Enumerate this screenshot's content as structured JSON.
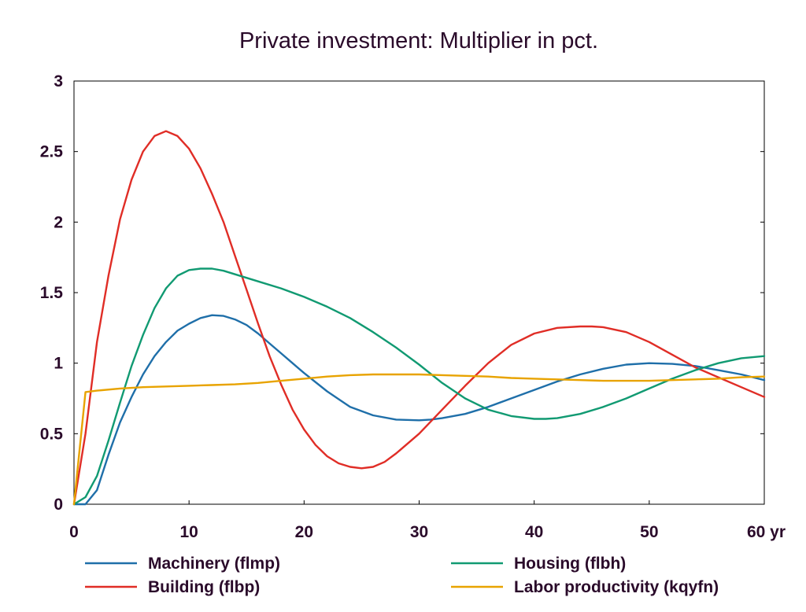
{
  "chart_data": {
    "type": "line",
    "title": "Private investment: Multiplier in pct.",
    "xlabel": "",
    "ylabel": "",
    "x_unit_label": "yr",
    "xlim": [
      0,
      60
    ],
    "ylim": [
      0,
      3
    ],
    "xticks": [
      0,
      10,
      20,
      30,
      40,
      50,
      60
    ],
    "xtick_labels": [
      "0",
      "10",
      "20",
      "30",
      "40",
      "50",
      "60 yr"
    ],
    "yticks": [
      0,
      0.5,
      1,
      1.5,
      2,
      2.5,
      3
    ],
    "ytick_labels": [
      "0",
      "0.5",
      "1",
      "1.5",
      "2",
      "2.5",
      "3"
    ],
    "grid": false,
    "legend_position": "bottom",
    "series": [
      {
        "name": "Machinery (flmp)",
        "color": "#1f6fa9",
        "x": [
          0,
          1,
          2,
          3,
          4,
          5,
          6,
          7,
          8,
          9,
          10,
          11,
          12,
          13,
          14,
          15,
          16,
          17,
          18,
          19,
          20,
          22,
          24,
          26,
          28,
          30,
          31,
          32,
          34,
          36,
          38,
          40,
          42,
          44,
          46,
          48,
          50,
          52,
          54,
          56,
          58,
          60
        ],
        "y": [
          0,
          0,
          0.1,
          0.35,
          0.58,
          0.76,
          0.92,
          1.05,
          1.15,
          1.23,
          1.28,
          1.32,
          1.34,
          1.335,
          1.31,
          1.27,
          1.21,
          1.14,
          1.07,
          1.0,
          0.93,
          0.8,
          0.69,
          0.63,
          0.6,
          0.595,
          0.6,
          0.61,
          0.64,
          0.69,
          0.75,
          0.81,
          0.87,
          0.92,
          0.96,
          0.99,
          1.0,
          0.995,
          0.98,
          0.95,
          0.92,
          0.88
        ]
      },
      {
        "name": "Building (flbp)",
        "color": "#e02d26",
        "x": [
          0,
          1,
          2,
          3,
          4,
          5,
          6,
          7,
          8,
          9,
          10,
          11,
          12,
          13,
          14,
          15,
          16,
          17,
          18,
          19,
          20,
          21,
          22,
          23,
          24,
          25,
          26,
          27,
          28,
          30,
          32,
          34,
          36,
          38,
          40,
          42,
          44,
          45,
          46,
          48,
          50,
          52,
          54,
          56,
          58,
          60
        ],
        "y": [
          0,
          0.5,
          1.15,
          1.62,
          2.02,
          2.3,
          2.5,
          2.61,
          2.645,
          2.61,
          2.52,
          2.38,
          2.2,
          2.0,
          1.76,
          1.52,
          1.28,
          1.05,
          0.85,
          0.67,
          0.53,
          0.42,
          0.34,
          0.29,
          0.265,
          0.255,
          0.265,
          0.3,
          0.36,
          0.5,
          0.67,
          0.84,
          1.0,
          1.13,
          1.21,
          1.25,
          1.26,
          1.26,
          1.255,
          1.22,
          1.15,
          1.06,
          0.97,
          0.9,
          0.83,
          0.76
        ]
      },
      {
        "name": "Housing (flbh)",
        "color": "#119a72",
        "x": [
          0,
          1,
          2,
          3,
          4,
          5,
          6,
          7,
          8,
          9,
          10,
          11,
          12,
          13,
          14,
          16,
          18,
          20,
          22,
          24,
          26,
          28,
          30,
          32,
          34,
          36,
          38,
          40,
          41,
          42,
          44,
          46,
          48,
          50,
          52,
          54,
          56,
          58,
          60
        ],
        "y": [
          0,
          0.05,
          0.2,
          0.45,
          0.72,
          0.98,
          1.2,
          1.39,
          1.53,
          1.62,
          1.66,
          1.67,
          1.67,
          1.655,
          1.63,
          1.58,
          1.53,
          1.47,
          1.4,
          1.32,
          1.22,
          1.11,
          0.99,
          0.86,
          0.75,
          0.67,
          0.625,
          0.605,
          0.605,
          0.61,
          0.64,
          0.69,
          0.75,
          0.82,
          0.89,
          0.95,
          1.0,
          1.035,
          1.05
        ]
      },
      {
        "name": "Labor productivity (kqyfn)",
        "color": "#e8a300",
        "x": [
          0,
          1,
          2,
          4,
          6,
          8,
          10,
          12,
          14,
          16,
          18,
          20,
          22,
          24,
          26,
          28,
          30,
          32,
          34,
          36,
          38,
          40,
          42,
          44,
          46,
          48,
          50,
          52,
          54,
          56,
          58,
          60
        ],
        "y": [
          0,
          0.795,
          0.805,
          0.82,
          0.83,
          0.835,
          0.84,
          0.845,
          0.85,
          0.86,
          0.875,
          0.89,
          0.905,
          0.915,
          0.92,
          0.92,
          0.92,
          0.915,
          0.91,
          0.905,
          0.895,
          0.89,
          0.885,
          0.88,
          0.875,
          0.875,
          0.875,
          0.88,
          0.885,
          0.89,
          0.9,
          0.905
        ]
      }
    ]
  }
}
